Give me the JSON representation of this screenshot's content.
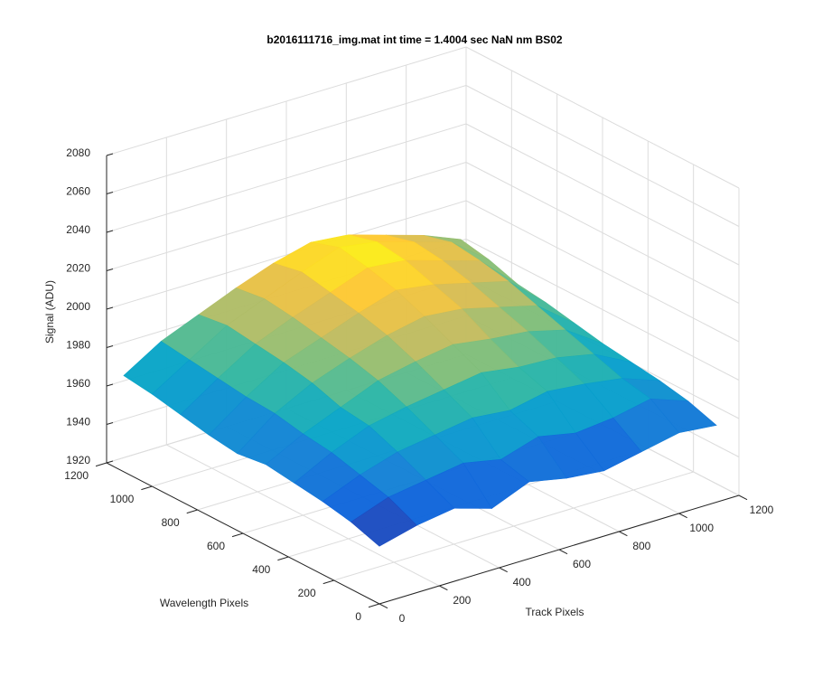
{
  "chart_data": {
    "type": "surface",
    "title": "b2016111716_img.mat int time = 1.4004 sec  NaN nm BS02",
    "xlabel": "Track Pixels",
    "ylabel": "Wavelength Pixels",
    "zlabel": "Signal (ADU)",
    "xlim": [
      0,
      1200
    ],
    "xticks": [
      0,
      200,
      400,
      600,
      800,
      1000,
      1200
    ],
    "ylim": [
      0,
      1200
    ],
    "yticks": [
      0,
      200,
      400,
      600,
      800,
      1000,
      1200
    ],
    "zlim": [
      1920,
      2080
    ],
    "zticks": [
      1920,
      1940,
      1960,
      1980,
      2000,
      2020,
      2040,
      2060,
      2080
    ],
    "grid": true,
    "colormap": "parula",
    "x": [
      0,
      125,
      250,
      375,
      500,
      625,
      750,
      875,
      1000,
      1125
    ],
    "y": [
      0,
      125,
      250,
      375,
      500,
      625,
      750,
      875,
      1000,
      1125
    ],
    "z": [
      [
        1950,
        1955,
        1958,
        1952,
        1960,
        1956,
        1954,
        1958,
        1962,
        1960
      ],
      [
        1955,
        1962,
        1965,
        1968,
        1964,
        1970,
        1966,
        1968,
        1972,
        1965
      ],
      [
        1958,
        1966,
        1972,
        1975,
        1978,
        1976,
        1980,
        1978,
        1975,
        1968
      ],
      [
        1960,
        1970,
        1978,
        1982,
        1985,
        1988,
        1985,
        1984,
        1980,
        1970
      ],
      [
        1962,
        1972,
        1980,
        1988,
        1992,
        1995,
        1992,
        1990,
        1985,
        1972
      ],
      [
        1960,
        1975,
        1985,
        1992,
        1998,
        2002,
        2000,
        1995,
        1990,
        1975
      ],
      [
        1962,
        1976,
        1988,
        1995,
        2002,
        2008,
        2005,
        2000,
        1995,
        1978
      ],
      [
        1965,
        1978,
        1990,
        1998,
        2005,
        2012,
        2010,
        2004,
        1998,
        1980
      ],
      [
        1968,
        1980,
        1992,
        2000,
        2008,
        2015,
        2012,
        2006,
        2000,
        1985
      ],
      [
        1970,
        1982,
        1990,
        1998,
        2005,
        2010,
        2008,
        2002,
        1996,
        1988
      ]
    ]
  }
}
